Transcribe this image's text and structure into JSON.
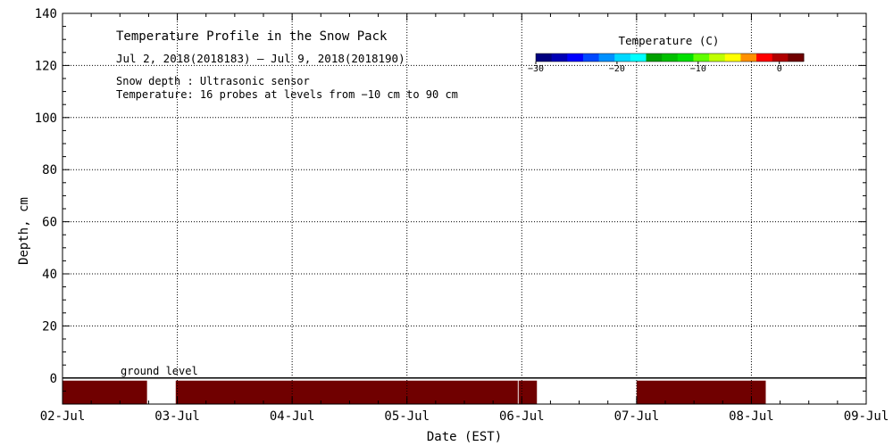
{
  "chart_data": {
    "type": "heatmap",
    "title": "Temperature Profile in the Snow Pack",
    "subtitle": "Jul  2, 2018(2018183) — Jul  9, 2018(2018190)",
    "notes": [
      "Snow depth : Ultrasonic sensor",
      "Temperature: 16 probes at levels from −10 cm to 90 cm"
    ],
    "xlabel": "Date (EST)",
    "ylabel": "Depth, cm",
    "xlim": [
      "2018-07-02T00:00",
      "2018-07-09T00:00"
    ],
    "ylim": [
      -10,
      140
    ],
    "x_ticks": [
      "02-Jul",
      "03-Jul",
      "04-Jul",
      "05-Jul",
      "06-Jul",
      "07-Jul",
      "08-Jul",
      "09-Jul"
    ],
    "y_ticks": [
      0,
      20,
      40,
      60,
      80,
      100,
      120,
      140
    ],
    "grid": true,
    "ground_level_label": "ground level",
    "ground_level_value": 0,
    "colorbar": {
      "title": "Temperature (C)",
      "ticks": [
        -30,
        -20,
        -10,
        0
      ],
      "range": [
        -30,
        3
      ],
      "colors": [
        "#00007f",
        "#0000b5",
        "#0000ff",
        "#0048ff",
        "#0090ff",
        "#00d8ff",
        "#00ffff",
        "#00a000",
        "#00c000",
        "#00e000",
        "#60ff00",
        "#c0ff00",
        "#ffff00",
        "#ff9000",
        "#ff0000",
        "#b00000",
        "#700000"
      ]
    },
    "series": [
      {
        "segments": [
          {
            "start": "2018-07-02T00:00",
            "end": "2018-07-02T17:40",
            "depth_top": -1,
            "depth_bottom": -10,
            "temp": 3
          },
          {
            "start": "2018-07-02T23:40",
            "end": "2018-07-05T23:10",
            "depth_top": -1,
            "depth_bottom": -10,
            "temp": 3
          },
          {
            "start": "2018-07-05T23:20",
            "end": "2018-07-06T03:10",
            "depth_top": -1,
            "depth_bottom": -10,
            "temp": 3
          },
          {
            "start": "2018-07-07T00:00",
            "end": "2018-07-08T03:00",
            "depth_top": -1,
            "depth_bottom": -10,
            "temp": 3
          }
        ]
      }
    ]
  }
}
